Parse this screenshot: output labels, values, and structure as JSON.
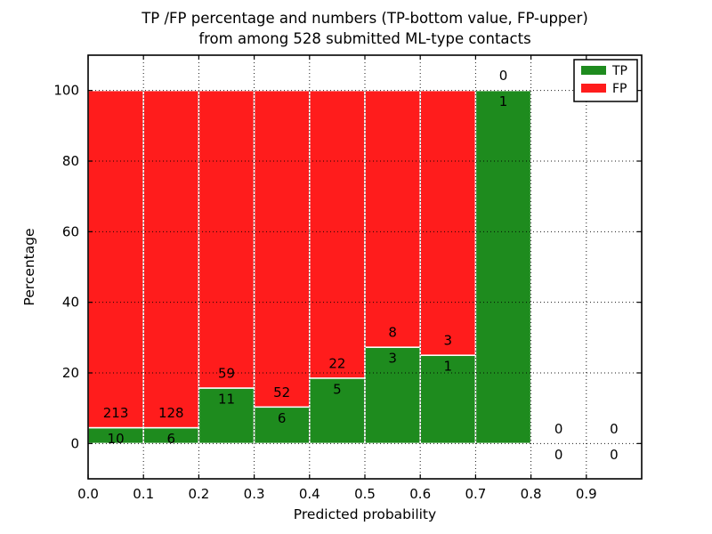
{
  "chart_data": {
    "type": "bar",
    "stacked": true,
    "title_line1": "TP /FP percentage and numbers (TP-bottom value, FP-upper)",
    "title_line2": "from among 528 submitted ML-type contacts",
    "xlabel": "Predicted probability",
    "ylabel": "Percentage",
    "total_contacts": 528,
    "xlim": [
      0.0,
      1.0
    ],
    "ylim": [
      -10,
      110
    ],
    "x_tick_values": [
      0.0,
      0.1,
      0.2,
      0.3,
      0.4,
      0.5,
      0.6,
      0.7,
      0.8,
      0.9
    ],
    "x_tick_labels": [
      "0.0",
      "0.1",
      "0.2",
      "0.3",
      "0.4",
      "0.5",
      "0.6",
      "0.7",
      "0.8",
      "0.9"
    ],
    "y_tick_values": [
      0,
      20,
      40,
      60,
      80,
      100
    ],
    "y_tick_labels": [
      "0",
      "20",
      "40",
      "60",
      "80",
      "100"
    ],
    "grid": "dotted",
    "bin_width": 0.1,
    "bin_starts": [
      0.0,
      0.1,
      0.2,
      0.3,
      0.4,
      0.5,
      0.6,
      0.7,
      0.8,
      0.9
    ],
    "series": [
      {
        "name": "TP",
        "color": "#1e8b1e",
        "counts": [
          10,
          6,
          11,
          6,
          5,
          3,
          1,
          1,
          0,
          0
        ]
      },
      {
        "name": "FP",
        "color": "#ff1c1c",
        "counts": [
          213,
          128,
          59,
          52,
          22,
          8,
          3,
          0,
          0,
          0
        ]
      }
    ],
    "tp_percentages": [
      4.5,
      4.5,
      15.7,
      10.3,
      18.5,
      27.3,
      25.0,
      100.0,
      0.0,
      0.0
    ],
    "legend": {
      "position": "upper right",
      "entries": [
        {
          "label": "TP",
          "color": "#1e8b1e"
        },
        {
          "label": "FP",
          "color": "#ff1c1c"
        }
      ]
    }
  },
  "colors": {
    "tp_green": "#1e8b1e",
    "fp_red": "#ff1c1c",
    "axis": "#000000",
    "grid": "#000000",
    "bar_edge": "#ffffff",
    "background": "#ffffff"
  }
}
